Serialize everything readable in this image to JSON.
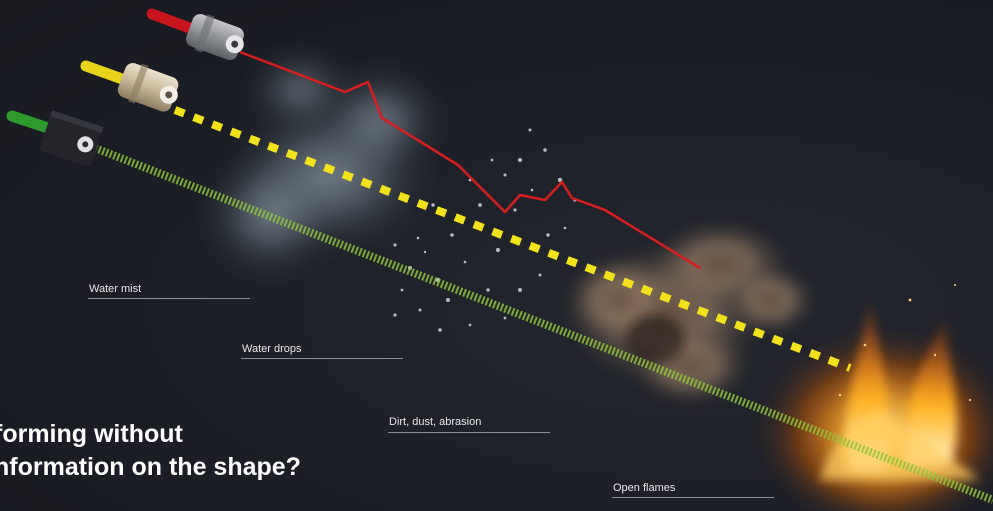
{
  "labels": {
    "water_mist": "Water mist",
    "water_drops": "Water drops",
    "dirt_dust": "Dirt, dust, abrasion",
    "open_flames": "Open flames"
  },
  "headline": {
    "line1": "forming without",
    "line2": "nformation on the shape?"
  },
  "sensors": [
    {
      "name": "red-sensor",
      "cable_color": "#c8141c"
    },
    {
      "name": "yellow-sensor",
      "cable_color": "#e8d21a"
    },
    {
      "name": "green-sensor",
      "cable_color": "#2e9a2e"
    }
  ],
  "colors": {
    "red_beam": "#d81e1e",
    "yellow_beam": "#f2e21c",
    "green_beam": "#8fc43a",
    "background": "#1c1f26"
  }
}
